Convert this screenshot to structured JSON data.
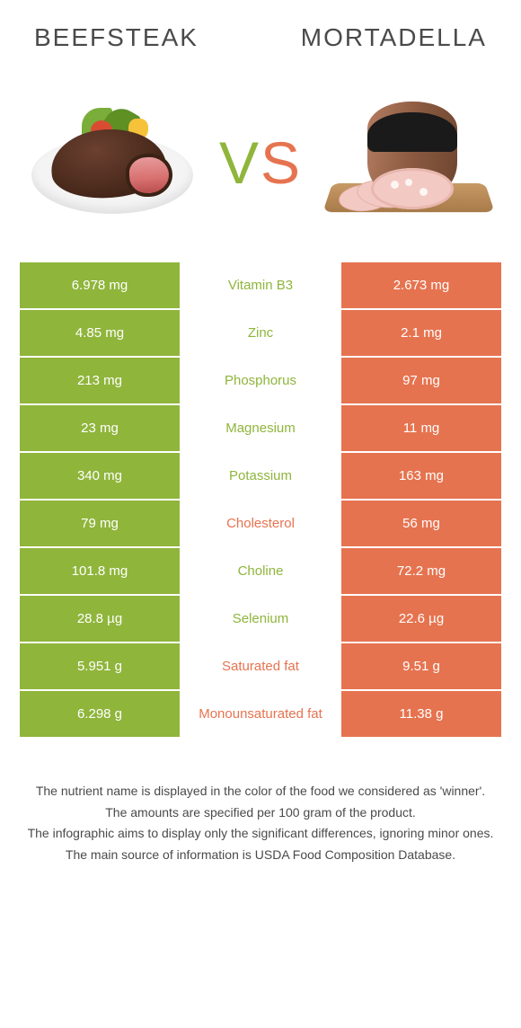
{
  "colors": {
    "left": "#8fb53b",
    "right": "#e6734f",
    "text": "#4a4a4a",
    "bg": "#ffffff"
  },
  "header": {
    "left_title": "Beefsteak",
    "right_title": "Mortadella"
  },
  "vs": {
    "v": "V",
    "s": "S"
  },
  "table": {
    "type": "comparison-table",
    "rows": [
      {
        "nutrient": "Vitamin B3",
        "left": "6.978 mg",
        "right": "2.673 mg",
        "winner": "left"
      },
      {
        "nutrient": "Zinc",
        "left": "4.85 mg",
        "right": "2.1 mg",
        "winner": "left"
      },
      {
        "nutrient": "Phosphorus",
        "left": "213 mg",
        "right": "97 mg",
        "winner": "left"
      },
      {
        "nutrient": "Magnesium",
        "left": "23 mg",
        "right": "11 mg",
        "winner": "left"
      },
      {
        "nutrient": "Potassium",
        "left": "340 mg",
        "right": "163 mg",
        "winner": "left"
      },
      {
        "nutrient": "Cholesterol",
        "left": "79 mg",
        "right": "56 mg",
        "winner": "right"
      },
      {
        "nutrient": "Choline",
        "left": "101.8 mg",
        "right": "72.2 mg",
        "winner": "left"
      },
      {
        "nutrient": "Selenium",
        "left": "28.8 µg",
        "right": "22.6 µg",
        "winner": "left"
      },
      {
        "nutrient": "Saturated fat",
        "left": "5.951 g",
        "right": "9.51 g",
        "winner": "right"
      },
      {
        "nutrient": "Monounsaturated fat",
        "left": "6.298 g",
        "right": "11.38 g",
        "winner": "right"
      }
    ]
  },
  "footer": {
    "line1": "The nutrient name is displayed in the color of the food we considered as 'winner'.",
    "line2": "The amounts are specified per 100 gram of the product.",
    "line3": "The infographic aims to display only the significant differences, ignoring minor ones.",
    "line4": "The main source of information is USDA Food Composition Database."
  }
}
